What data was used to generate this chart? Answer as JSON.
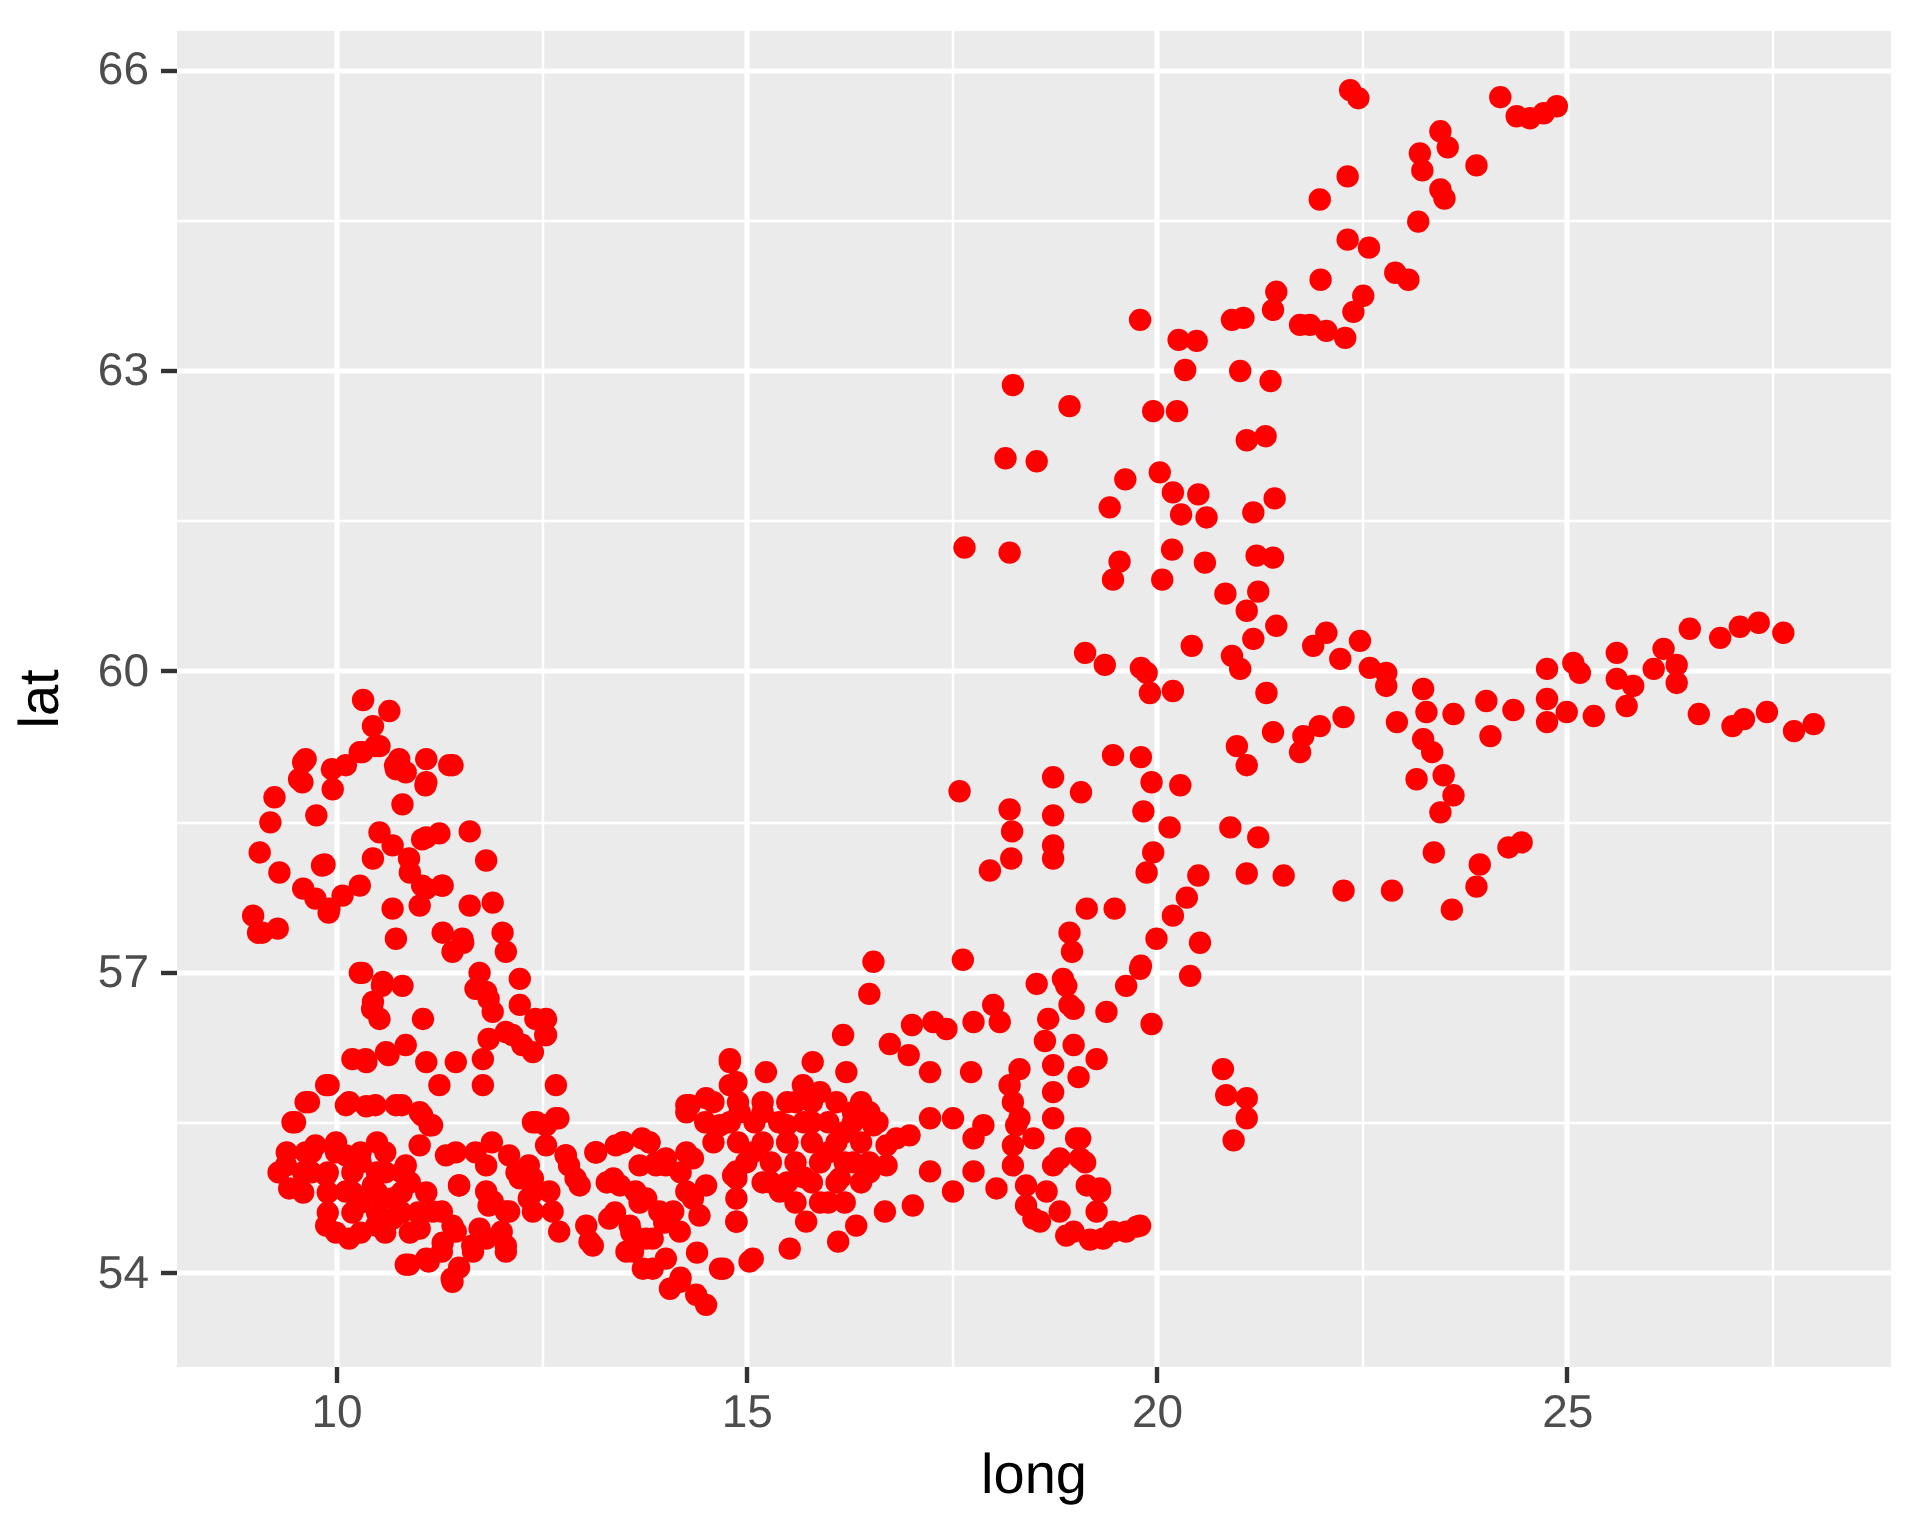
{
  "chart_data": {
    "type": "scatter",
    "xlabel": "long",
    "ylabel": "lat",
    "color": "#ff0000",
    "marker": "circle",
    "grid": true,
    "xlim": [
      8.05,
      28.94
    ],
    "ylim": [
      53.07,
      66.39
    ],
    "xticks": [
      10,
      {
        "value": 12.5,
        "label": null
      },
      15,
      {
        "value": 17.5,
        "label": null
      },
      20,
      {
        "value": 22.5,
        "label": null
      },
      25,
      {
        "value": 27.5,
        "label": null
      }
    ],
    "yticks": [
      54,
      {
        "value": 55.5,
        "label": null
      },
      57,
      {
        "value": 58.5,
        "label": null
      },
      60,
      {
        "value": 61.5,
        "label": null
      },
      63,
      {
        "value": 64.5,
        "label": null
      },
      66
    ],
    "x": [
      21.99,
      22.0,
      21.46,
      21.42,
      21.75,
      20.92,
      21.06,
      19.8,
      20.27,
      20.49,
      20.35,
      21.02,
      21.39,
      18.25,
      18.94,
      19.96,
      20.25,
      21.33,
      21.1,
      18.16,
      18.54,
      19.62,
      20.04,
      20.2,
      20.51,
      19.43,
      20.3,
      20.61,
      21.44,
      21.18,
      17.66,
      18.21,
      20.19,
      19.55,
      19.47,
      20.07,
      20.59,
      21.22,
      21.42,
      20.84,
      21.24,
      21.1,
      19.13,
      19.37,
      19.81,
      20.43,
      20.92,
      21.18,
      21.46,
      21.91,
      22.36,
      22.46,
      24.19,
      24.39,
      24.55,
      24.88,
      24.72,
      22.33,
      23.46,
      23.55,
      23.21,
      23.24,
      23.9,
      23.46,
      23.51,
      23.19,
      22.33,
      22.59,
      22.91,
      23.07,
      22.52,
      22.4,
      21.87,
      22.07,
      22.3,
      22.07,
      22.48,
      22.24,
      22.6,
      22.8,
      24.76,
      25.08,
      25.61,
      26.18,
      26.34,
      26.5,
      26.87,
      27.11,
      27.34,
      27.64,
      22.8,
      22.93,
      23.25,
      23.29,
      23.62,
      24.02,
      24.35,
      24.07,
      22.28,
      21.99,
      21.75,
      23.25,
      23.36,
      23.17,
      23.5,
      23.62,
      23.46,
      23.38,
      23.94,
      23.9,
      23.6,
      24.29,
      24.45,
      22.28,
      22.87,
      24.76,
      25.0,
      25.33,
      25.61,
      25.73,
      26.06,
      26.34,
      26.61,
      27.02,
      27.16,
      27.44,
      27.77,
      28.01,
      24.76,
      25.16,
      25.81,
      21.02,
      21.42,
      21.79,
      20.98,
      21.1,
      19.88,
      19.92,
      20.2,
      21.34,
      17.6,
      18.21,
      18.24,
      18.23,
      17.97,
      18.74,
      18.74,
      18.74,
      18.74,
      19.08,
      19.47,
      19.81,
      19.94,
      20.29,
      19.84,
      20.16,
      19.96,
      19.88,
      20.51,
      20.9,
      21.24,
      21.1,
      21.55,
      20.37,
      20.2,
      20.0,
      19.81,
      19.63,
      19.39,
      19.94,
      20.53,
      20.41,
      19.15,
      19.49,
      18.94,
      18.97,
      18.86,
      18.94,
      18.68,
      18.54,
      17.64,
      16.55,
      16.5,
      16.18,
      17.02,
      17.28,
      17.77,
      18.01,
      16.75,
      16.98,
      17.24,
      17.74,
      18.64,
      19.05,
      19.27,
      18.33,
      18.21,
      15.81,
      16.22,
      14.8,
      20.81,
      20.85,
      21.1,
      21.1,
      20.94,
      17.24,
      17.52,
      17.89,
      17.24,
      17.52,
      17.77,
      18.05,
      18.25,
      18.41,
      18.58,
      18.9,
      19.07,
      19.13,
      19.31,
      19.27,
      19.19,
      19.47,
      19.76,
      18.66,
      18.74,
      18.5,
      18.29,
      18.25,
      18.74,
      16.69,
      17.03,
      16.34,
      16.12,
      15.53,
      15.04,
      14.72,
      14.88,
      14.88,
      14.68,
      15.24,
      15.73,
      16.83,
      16.55,
      16.3,
      15.49,
      15.08,
      16.14,
      15.41,
      14.92,
      15.9,
      16.71,
      15.2,
      15.5,
      15.8,
      16.0,
      16.2,
      16.5,
      16.5,
      15.3,
      15.7,
      16.0,
      15.6,
      16.3,
      13.3,
      13.7,
      14.0,
      14.2,
      13.9,
      13.6,
      14.4,
      14.2,
      13.4,
      10.33,
      10.65,
      10.45,
      10.53,
      10.29,
      10.12,
      9.6,
      9.55,
      9.96,
      10.77,
      11.1,
      11.42,
      11.1,
      10.73,
      9.25,
      9.2,
      9.76,
      10.81,
      9.07,
      9.31,
      9.6,
      9.92,
      10.08,
      10.29,
      9.86,
      8.99,
      9.05,
      9.29,
      10.53,
      10.45,
      10.69,
      11.1,
      11.26,
      11.63,
      11.83,
      10.9,
      11.1,
      11.3,
      10.69,
      10.73,
      11.02,
      11.3,
      11.63,
      11.91,
      12.03,
      11.55,
      11.42,
      11.75,
      12.07,
      12.24,
      11.83,
      11.91,
      12.07,
      12.24,
      12.4,
      12.56,
      12.56,
      11.79,
      11.79,
      11.46,
      11.26,
      11.06,
      10.85,
      11.1,
      10.61,
      10.37,
      10.2,
      10.45,
      10.29,
      10.57,
      10.81,
      10.53,
      12.68,
      12.68,
      12.44,
      9.88,
      9.63,
      9.47,
      10.12,
      10.37,
      10.73,
      11.02,
      11.14,
      9.39,
      9.43,
      9.63,
      9.88,
      10.12,
      10.12,
      9.88,
      10.16,
      10.45,
      10.69,
      10.85,
      11.02,
      10.69,
      11.02,
      10.49,
      11.34,
      11.5,
      11.18,
      11.42,
      11.75,
      10.85,
      11.1,
      11.42,
      11.67,
      11.83,
      12.07,
      12.07,
      12.4,
      12.56,
      12.64,
      12.8,
      13.17,
      13.13,
      13.05,
      13.5,
      13.46,
      13.82,
      14.02,
      13.54,
      13.86,
      14.07,
      14.51,
      14.68,
      14.43,
      14.27,
      14.35,
      14.27,
      14.51,
      14.8,
      14.8,
      14.84,
      13.94,
      13.78,
      9.7,
      10.0,
      10.3,
      10.6,
      10.3,
      10.9,
      10.5,
      11.9,
      12.2,
      12.4,
      11.3,
      11.5,
      18.9,
      18.99,
      19.8,
      17.44,
      18.09,
      18.99,
      18.74,
      18.33,
      18.25,
      18.74,
      19.02,
      18.82,
      19.07,
      18.41,
      18.5,
      18.82,
      19.15,
      19.31,
      18.99,
      19.35,
      19.63,
      19.8,
      17.77,
      16.99,
      16.71,
      14.88,
      15.69,
      14.31,
      14.6,
      14.9,
      15.2,
      15.5,
      15.8,
      16.1,
      16.4,
      14.5,
      14.8,
      15.1,
      15.4,
      15.7,
      16.0,
      16.3,
      16.6,
      14.6,
      14.9,
      15.2,
      15.5,
      15.8,
      16.1,
      16.4,
      15.0,
      15.3,
      15.6,
      15.9,
      16.2,
      16.5,
      15.2,
      15.5,
      15.8,
      16.1,
      16.4,
      15.6,
      15.9,
      16.2,
      12.4,
      12.71,
      14.88,
      14.27,
      12.56,
      12.8,
      13.17,
      13.5,
      13.82,
      11.83,
      12.24,
      11.91,
      11.83,
      12.07,
      12.4,
      12.72,
      13.09,
      12.97,
      13.38,
      13.7,
      14.02,
      14.27,
      13.78,
      14.11,
      13.58,
      13.86,
      14.19,
      13.62,
      14.02,
      13.74,
      14.19,
      14.39,
      15.08,
      14.88,
      14.88,
      14.51,
      14.35,
      10.48,
      9.63,
      9.59,
      9.95,
      10.32,
      10.72,
      11.38,
      10.85,
      11.09,
      9.83,
      9.75,
      9.91,
      9.1,
      10.89,
      11.05,
      11.29,
      11.05,
      11.54,
      11.7,
      11.86,
      11.86,
      12.15,
      12.27,
      12.43,
      12.55,
      10.64,
      10.36,
      10.44,
      10.32,
      10.56,
      9.91,
      9.67,
      9.5,
      10.16,
      10.48,
      10.8,
      11.05,
      11.17,
      9.75,
      9.4,
      9.7,
      10.0,
      10.3,
      10.6,
      9.3,
      9.6,
      9.9,
      10.2,
      10.5,
      10.8,
      9.6,
      9.9,
      10.2,
      10.5,
      10.8,
      11.1,
      9.9,
      10.2,
      10.5,
      10.8,
      11.0,
      10.0,
      10.3,
      10.6,
      10.9,
      11.46,
      11.7,
      12.11,
      11.5,
      11.86,
      11.29,
      11.46,
      11.29,
      10.89,
      11.13,
      11.41,
      11.66,
      12.02,
      12.11,
      12.35,
      12.6,
      12.92,
      13.33,
      13.65,
      13.9,
      13.73,
      13.41,
      13.16,
      12.84,
      12.35
    ],
    "values": [
      64.7,
      63.9,
      63.78,
      63.6,
      63.45,
      63.5,
      63.52,
      63.5,
      63.3,
      63.29,
      63.0,
      62.99,
      62.89,
      62.85,
      62.64,
      62.59,
      62.59,
      62.34,
      62.3,
      62.12,
      62.09,
      61.91,
      61.98,
      61.78,
      61.76,
      61.63,
      61.56,
      61.53,
      61.72,
      61.58,
      61.23,
      61.18,
      61.21,
      61.09,
      60.91,
      60.91,
      61.08,
      61.15,
      61.13,
      60.77,
      60.79,
      60.6,
      60.18,
      60.06,
      60.03,
      60.25,
      60.15,
      60.32,
      60.45,
      60.25,
      65.79,
      65.71,
      65.72,
      65.53,
      65.51,
      65.63,
      65.56,
      64.93,
      65.38,
      65.22,
      65.16,
      64.99,
      65.04,
      64.8,
      64.71,
      64.48,
      64.3,
      64.22,
      63.97,
      63.9,
      63.74,
      63.58,
      63.45,
      63.39,
      63.32,
      60.38,
      60.3,
      60.12,
      60.03,
      59.98,
      60.02,
      60.08,
      60.18,
      60.22,
      60.06,
      60.42,
      60.33,
      60.44,
      60.48,
      60.38,
      59.85,
      59.49,
      59.82,
      59.59,
      59.57,
      59.7,
      59.61,
      59.35,
      59.54,
      59.45,
      59.19,
      59.32,
      59.19,
      58.92,
      58.96,
      58.76,
      58.59,
      58.19,
      58.07,
      57.85,
      57.62,
      58.24,
      58.29,
      57.81,
      57.81,
      59.49,
      59.59,
      59.55,
      59.92,
      59.65,
      60.02,
      59.88,
      59.57,
      59.45,
      59.52,
      59.59,
      59.4,
      59.47,
      59.72,
      59.98,
      59.85,
      60.02,
      59.39,
      59.35,
      59.25,
      59.06,
      59.98,
      59.78,
      59.8,
      59.78,
      58.8,
      58.62,
      58.4,
      58.13,
      58.01,
      58.94,
      58.56,
      58.26,
      58.13,
      58.79,
      59.16,
      59.14,
      58.89,
      58.86,
      58.6,
      58.44,
      58.19,
      57.99,
      57.96,
      58.44,
      58.34,
      57.98,
      57.96,
      57.74,
      57.56,
      57.33,
      57.06,
      56.86,
      56.6,
      56.48,
      57.29,
      56.96,
      57.63,
      57.63,
      57.39,
      57.2,
      56.93,
      56.67,
      56.53,
      56.88,
      57.12,
      57.1,
      56.78,
      56.37,
      56.47,
      56.5,
      56.5,
      56.67,
      56.28,
      56.17,
      56.0,
      56.0,
      56.31,
      55.95,
      56.13,
      56.03,
      55.87,
      56.1,
      56.0,
      56.13,
      56.03,
      55.77,
      55.74,
      55.54,
      55.32,
      55.54,
      55.54,
      55.47,
      55.01,
      54.81,
      55.01,
      54.84,
      55.07,
      54.67,
      54.51,
      54.37,
      55.34,
      55.1,
      54.84,
      54.61,
      54.33,
      54.41,
      54.46,
      54.81,
      55.07,
      55.34,
      55.47,
      55.7,
      55.8,
      54.61,
      54.67,
      54.47,
      54.31,
      54.24,
      54.11,
      54.04,
      54.51,
      55.01,
      55.47,
      56.0,
      54.51,
      55.34,
      55.47,
      55.6,
      55.47,
      55.2,
      54.94,
      54.81,
      55.6,
      55.8,
      55.07,
      55.6,
      55.3,
      55.5,
      55.2,
      55.4,
      55.6,
      55.0,
      54.9,
      54.95,
      54.7,
      55.7,
      55.1,
      54.9,
      54.7,
      54.5,
      55.0,
      55.1,
      54.4,
      54.2,
      53.95,
      54.6,
      59.71,
      59.6,
      59.45,
      59.25,
      59.19,
      59.06,
      59.09,
      58.92,
      58.82,
      59.12,
      59.12,
      59.06,
      58.89,
      59.02,
      58.74,
      58.49,
      58.56,
      58.67,
      58.19,
      57.99,
      57.83,
      57.63,
      57.76,
      57.86,
      58.07,
      57.56,
      57.39,
      57.43,
      58.39,
      58.13,
      58.26,
      58.34,
      58.38,
      58.4,
      58.11,
      57.99,
      57.83,
      57.86,
      57.63,
      57.33,
      57.66,
      57.39,
      57.66,
      57.69,
      57.39,
      57.29,
      57.2,
      56.99,
      57.2,
      56.93,
      56.8,
      56.6,
      56.4,
      56.67,
      56.2,
      56.53,
      56.37,
      56.13,
      55.87,
      56.1,
      55.87,
      56.53,
      56.27,
      56.1,
      56.2,
      56.1,
      56.13,
      56.7,
      56.99,
      56.9,
      56.86,
      56.53,
      55.87,
      55.54,
      55.5,
      55.87,
      55.7,
      55.5,
      55.67,
      55.66,
      55.67,
      55.6,
      55.47,
      55.07,
      54.84,
      55.2,
      54.97,
      55.17,
      54.81,
      54.47,
      54.34,
      54.87,
      54.74,
      55.07,
      55.27,
      54.54,
      54.44,
      54.47,
      55.17,
      54.87,
      54.61,
      54.47,
      54.44,
      54.08,
      54.14,
      53.91,
      54.21,
      54.81,
      54.61,
      54.27,
      54.94,
      55.47,
      54.61,
      55.17,
      55.2,
      54.27,
      54.47,
      55.3,
      54.87,
      55.3,
      55.07,
      54.21,
      54.04,
      53.84,
      53.68,
      54.04,
      54.57,
      54.81,
      55.14,
      55.6,
      55.74,
      56.1,
      55.87,
      54.97,
      54.61,
      54.34,
      55.0,
      55.3,
      55.1,
      55.0,
      54.7,
      54.9,
      55.3,
      55.3,
      55.0,
      54.8,
      54.3,
      54.05,
      56.86,
      56.63,
      57.03,
      56.43,
      56.5,
      56.27,
      56.07,
      55.54,
      55.27,
      55.54,
      55.34,
      55.14,
      55.14,
      54.87,
      54.54,
      54.61,
      54.87,
      54.81,
      54.41,
      54.34,
      54.41,
      54.47,
      55.34,
      55.37,
      55.27,
      54.94,
      55.87,
      55.67,
      55.7,
      55.7,
      55.7,
      55.7,
      55.7,
      55.7,
      55.7,
      55.5,
      55.5,
      55.5,
      55.5,
      55.5,
      55.5,
      55.5,
      55.5,
      55.3,
      55.3,
      55.3,
      55.3,
      55.3,
      55.3,
      55.3,
      55.1,
      55.1,
      55.1,
      55.1,
      55.1,
      55.1,
      54.9,
      54.9,
      54.9,
      54.9,
      54.9,
      54.7,
      54.7,
      54.7,
      55.5,
      55.54,
      55.9,
      55.67,
      55.27,
      55.17,
      55.2,
      55.3,
      55.3,
      55.07,
      54.94,
      54.71,
      54.34,
      54.21,
      54.61,
      54.41,
      54.31,
      54.87,
      54.94,
      55.07,
      55.14,
      55.2,
      54.74,
      54.61,
      54.47,
      54.34,
      54.41,
      54.21,
      54.14,
      54.04,
      53.91,
      53.78,
      54.14,
      54.74,
      54.51,
      54.87,
      54.74,
      59.25,
      59.12,
      58.89,
      59.02,
      59.19,
      59.06,
      59.06,
      58.99,
      58.86,
      58.06,
      57.73,
      57.59,
      57.39,
      58.13,
      58.32,
      57.86,
      57.86,
      57.33,
      56.83,
      56.73,
      56.33,
      56.37,
      56.27,
      56.53,
      56.37,
      56.17,
      56.13,
      56.63,
      56.99,
      56.86,
      55.87,
      55.7,
      55.5,
      55.7,
      55.67,
      55.67,
      55.57,
      55.47,
      55.27,
      55.2,
      55.2,
      55.2,
      55.2,
      55.2,
      55.0,
      55.0,
      55.0,
      55.0,
      55.0,
      55.0,
      54.8,
      54.8,
      54.8,
      54.8,
      54.8,
      54.8,
      54.6,
      54.6,
      54.6,
      54.6,
      54.6,
      54.4,
      54.4,
      54.4,
      54.4,
      55.2,
      55.2,
      55.17,
      54.87,
      54.67,
      54.61,
      54.41,
      54.21,
      54.08,
      54.11,
      53.94,
      54.27,
      54.41,
      54.61,
      54.74,
      54.81,
      54.94,
      54.54,
      54.81,
      55.07,
      55.34,
      55.27,
      55.2,
      55.07,
      55.07
    ]
  }
}
